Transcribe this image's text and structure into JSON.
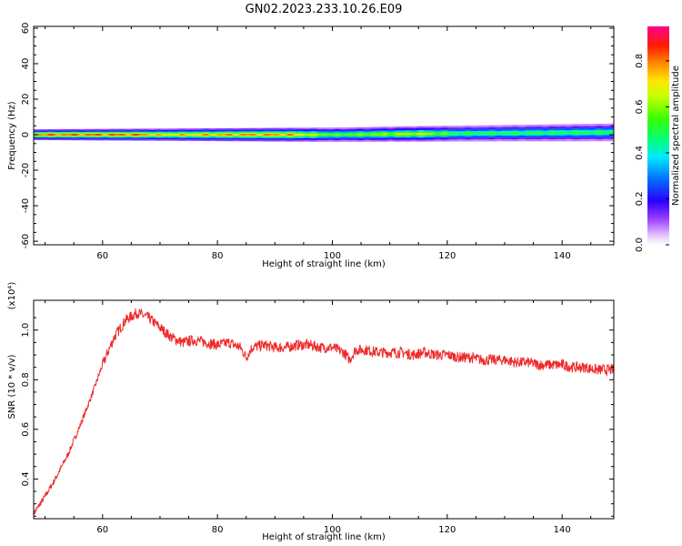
{
  "title": "GN02.2023.233.10.26.E09",
  "colors": {
    "snr_line": "#ee2a2a",
    "axes": "#000000"
  },
  "chart_data": [
    {
      "type": "heatmap",
      "xlabel": "Height of straight line (km)",
      "ylabel": "Frequency (Hz)",
      "xlim": [
        48,
        149
      ],
      "ylim": [
        -62,
        61
      ],
      "x_ticks": [
        60,
        80,
        100,
        120,
        140
      ],
      "y_ticks": [
        -60,
        -40,
        -20,
        0,
        20,
        40,
        60
      ],
      "band": {
        "center_hz": [
          [
            48,
            0
          ],
          [
            100,
            0
          ],
          [
            120,
            0.6
          ],
          [
            149,
            1.3
          ]
        ],
        "half_width_hz": [
          [
            48,
            3
          ],
          [
            100,
            4
          ],
          [
            149,
            5
          ]
        ],
        "peak_amplitude": [
          [
            48,
            0.9
          ],
          [
            66,
            0.9
          ],
          [
            70,
            0.78
          ],
          [
            84,
            0.85
          ],
          [
            92,
            0.85
          ],
          [
            100,
            0.6
          ],
          [
            115,
            0.72
          ],
          [
            122,
            0.55
          ],
          [
            149,
            0.55
          ]
        ]
      },
      "colorbar": {
        "label": "Normalized spectral amplitude",
        "range": [
          0,
          0.95
        ],
        "ticks": [
          0.0,
          0.2,
          0.4,
          0.6,
          0.8
        ]
      }
    },
    {
      "type": "line",
      "xlabel": "Height of straight line (km)",
      "ylabel": "SNR (10 * v/v)",
      "scale_label": "(x10⁴)",
      "xlim": [
        48,
        149
      ],
      "ylim": [
        0.24,
        1.12
      ],
      "x_ticks": [
        60,
        80,
        100,
        120,
        140
      ],
      "y_ticks": [
        0.4,
        0.6,
        0.8,
        1.0
      ],
      "series": [
        {
          "x": [
            48,
            50,
            52,
            54,
            56,
            58,
            60,
            62,
            64,
            66,
            68,
            70,
            72,
            74,
            76,
            78,
            80,
            82,
            84,
            85,
            86,
            88,
            90,
            92,
            94,
            96,
            98,
            100,
            102,
            103,
            104,
            106,
            108,
            110,
            112,
            114,
            116,
            118,
            120,
            122,
            124,
            126,
            128,
            130,
            132,
            134,
            136,
            138,
            140,
            142,
            144,
            146,
            149
          ],
          "values": [
            0.26,
            0.33,
            0.41,
            0.5,
            0.61,
            0.73,
            0.86,
            0.97,
            1.04,
            1.07,
            1.05,
            1.01,
            0.97,
            0.95,
            0.96,
            0.95,
            0.94,
            0.95,
            0.93,
            0.89,
            0.93,
            0.94,
            0.93,
            0.93,
            0.94,
            0.94,
            0.93,
            0.93,
            0.91,
            0.88,
            0.92,
            0.92,
            0.91,
            0.91,
            0.91,
            0.9,
            0.91,
            0.9,
            0.9,
            0.89,
            0.89,
            0.88,
            0.88,
            0.88,
            0.87,
            0.87,
            0.86,
            0.86,
            0.86,
            0.85,
            0.85,
            0.84,
            0.84
          ]
        }
      ]
    }
  ]
}
